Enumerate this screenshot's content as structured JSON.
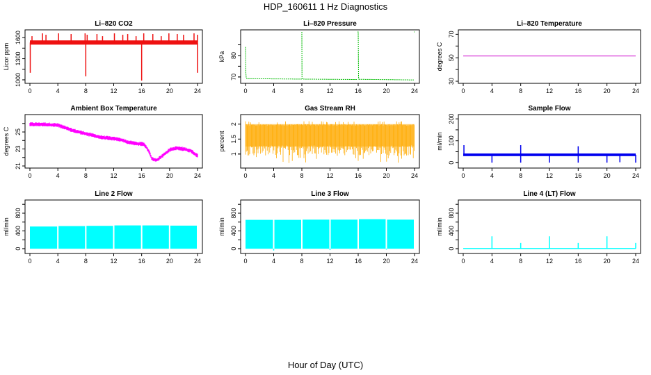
{
  "title": "HDP_160611  1 Hz Diagnostics",
  "xlabel": "Hour of Day (UTC)",
  "chart_data": [
    {
      "type": "line",
      "title": "Li–820 CO2",
      "ylabel": "Licor ppm",
      "color": "#ee1111",
      "xlim": [
        0,
        24
      ],
      "ylim": [
        980,
        1680
      ],
      "yticks": [
        1000,
        1300,
        1600
      ],
      "yticks_minor": [
        1150,
        1450
      ],
      "xticks": [
        0,
        4,
        8,
        12,
        16,
        20,
        24
      ],
      "baseline": 1530,
      "band": [
        1500,
        1560
      ],
      "spikes_up": [
        [
          0.3,
          1620
        ],
        [
          1.8,
          1660
        ],
        [
          2.3,
          1640
        ],
        [
          4.1,
          1660
        ],
        [
          5.9,
          1650
        ],
        [
          7.9,
          1660
        ],
        [
          8.2,
          1640
        ],
        [
          9.6,
          1650
        ],
        [
          10.4,
          1620
        ],
        [
          12.1,
          1660
        ],
        [
          13.3,
          1640
        ],
        [
          14.0,
          1650
        ],
        [
          15.2,
          1620
        ],
        [
          16.3,
          1660
        ],
        [
          17.6,
          1650
        ],
        [
          18.8,
          1620
        ],
        [
          19.9,
          1660
        ],
        [
          21.1,
          1650
        ],
        [
          22.0,
          1640
        ],
        [
          23.5,
          1660
        ],
        [
          24.0,
          1640
        ]
      ],
      "spikes_down": [
        [
          0.05,
          1100
        ],
        [
          8.0,
          1050
        ],
        [
          16.0,
          990
        ],
        [
          24.0,
          1100
        ]
      ]
    },
    {
      "type": "line",
      "title": "Li–820 Pressure",
      "ylabel": "kPa",
      "color": "#00bb00",
      "xlim": [
        0,
        24
      ],
      "ylim": [
        68,
        91
      ],
      "yticks": [
        70,
        80
      ],
      "yticks_minor": [
        75,
        85
      ],
      "xticks": [
        0,
        4,
        8,
        12,
        16,
        20,
        24
      ],
      "segments": [
        {
          "x": [
            0,
            0.05,
            0.1,
            0.2,
            8.0
          ],
          "y": [
            84,
            72,
            69.5,
            69.2,
            69.0
          ]
        },
        {
          "x": [
            8.0,
            8.02,
            8.1,
            15.9
          ],
          "y": [
            91,
            69.5,
            69.0,
            68.8
          ]
        },
        {
          "x": [
            15.9,
            16.0,
            16.05,
            16.1,
            23.9
          ],
          "y": [
            91,
            91,
            70,
            68.9,
            68.6
          ]
        },
        {
          "x": [
            23.9,
            24.0
          ],
          "y": [
            91,
            91
          ]
        }
      ]
    },
    {
      "type": "line",
      "title": "Li–820 Temperature",
      "ylabel": "degrees C",
      "color": "#cc00cc",
      "xlim": [
        0,
        24
      ],
      "ylim": [
        30,
        72
      ],
      "yticks": [
        30,
        50,
        70
      ],
      "yticks_minor": [
        40,
        60
      ],
      "xticks": [
        0,
        4,
        8,
        12,
        16,
        20,
        24
      ],
      "x": [
        0,
        24
      ],
      "y": [
        51.5,
        51.5
      ]
    },
    {
      "type": "line",
      "title": "Ambient Box Temperature",
      "ylabel": "degrees C",
      "color": "#ff00ff",
      "xlim": [
        0,
        24
      ],
      "ylim": [
        21,
        26.8
      ],
      "yticks": [
        21,
        23,
        25
      ],
      "yticks_minor": [
        22,
        24,
        26
      ],
      "xticks": [
        0,
        4,
        8,
        12,
        16,
        20,
        24
      ],
      "x": [
        0,
        2,
        4,
        5,
        6,
        8,
        10,
        12,
        13,
        14,
        15.5,
        16.3,
        17,
        17.5,
        18.2,
        19,
        20,
        21,
        22,
        23,
        24
      ],
      "y": [
        25.9,
        25.9,
        25.8,
        25.5,
        25.2,
        24.8,
        24.4,
        24.2,
        24.1,
        23.8,
        23.6,
        23.6,
        22.8,
        21.8,
        21.7,
        22.2,
        22.9,
        23.1,
        23.0,
        22.8,
        22.2
      ],
      "noise": 0.25
    },
    {
      "type": "line",
      "title": "Gas Stream RH",
      "ylabel": "percent",
      "color": "#ffaa00",
      "xlim": [
        0,
        24
      ],
      "ylim": [
        0.6,
        2.25
      ],
      "yticks": [
        1.0,
        1.5,
        2.0
      ],
      "yticks_minor": [],
      "xticks": [
        0,
        4,
        8,
        12,
        16,
        20,
        24
      ],
      "band": [
        0.95,
        2.0
      ],
      "noise_low": 0.7
    },
    {
      "type": "line",
      "title": "Sample Flow",
      "ylabel": "ml/min",
      "color": "#0000ee",
      "xlim": [
        0,
        24
      ],
      "ylim": [
        -15,
        210
      ],
      "yticks": [
        0,
        100,
        200
      ],
      "yticks_minor": [
        50,
        150
      ],
      "xticks": [
        0,
        4,
        8,
        12,
        16,
        20,
        24
      ],
      "band": [
        30,
        42
      ],
      "spikes_up": [
        [
          0.1,
          80
        ],
        [
          8.0,
          80
        ],
        [
          16.0,
          75
        ]
      ],
      "spikes_down": [
        [
          4.0,
          0
        ],
        [
          8.0,
          0
        ],
        [
          12.0,
          0
        ],
        [
          16.0,
          0
        ],
        [
          20.0,
          0
        ],
        [
          21.8,
          2
        ],
        [
          24.0,
          0
        ]
      ]
    },
    {
      "type": "line",
      "title": "Line 2 Flow",
      "ylabel": "ml/min",
      "color": "#00ffff",
      "xlim": [
        0,
        24
      ],
      "ylim": [
        -60,
        1050
      ],
      "yticks": [
        0,
        400,
        800
      ],
      "yticks_minor": [
        200,
        600,
        1000
      ],
      "xticks": [
        0,
        4,
        8,
        12,
        16,
        20,
        24
      ],
      "blocks": [
        [
          0,
          3.9,
          0,
          500
        ],
        [
          4.1,
          7.9,
          0,
          510
        ],
        [
          8.1,
          11.9,
          0,
          515
        ],
        [
          12.1,
          15.9,
          0,
          525
        ],
        [
          16.1,
          19.9,
          0,
          525
        ],
        [
          20.1,
          23.9,
          0,
          520
        ]
      ]
    },
    {
      "type": "line",
      "title": "Line 3 Flow",
      "ylabel": "ml/min",
      "color": "#00ffff",
      "xlim": [
        0,
        24
      ],
      "ylim": [
        -60,
        1050
      ],
      "yticks": [
        0,
        400,
        800
      ],
      "yticks_minor": [
        200,
        600,
        1000
      ],
      "xticks": [
        0,
        4,
        8,
        12,
        16,
        20,
        24
      ],
      "blocks": [
        [
          0,
          3.9,
          0,
          650
        ],
        [
          4.1,
          7.9,
          0,
          650
        ],
        [
          8.1,
          11.9,
          0,
          655
        ],
        [
          12.1,
          15.9,
          0,
          655
        ],
        [
          16.1,
          19.9,
          0,
          665
        ],
        [
          20.1,
          23.9,
          0,
          655
        ]
      ],
      "spikes_down": [
        [
          4.0,
          -40
        ],
        [
          12.0,
          -30
        ],
        [
          20.0,
          -20
        ]
      ]
    },
    {
      "type": "line",
      "title": "Line 4 (LT) Flow",
      "ylabel": "ml/min",
      "color": "#00ffff",
      "xlim": [
        0,
        24
      ],
      "ylim": [
        -60,
        1050
      ],
      "yticks": [
        0,
        400,
        800
      ],
      "yticks_minor": [
        200,
        600,
        1000
      ],
      "xticks": [
        0,
        4,
        8,
        12,
        16,
        20,
        24
      ],
      "baseline": 5,
      "spikes_up": [
        [
          4.0,
          280
        ],
        [
          8.0,
          130
        ],
        [
          12.0,
          280
        ],
        [
          16.0,
          130
        ],
        [
          20.0,
          280
        ],
        [
          24.0,
          130
        ]
      ]
    }
  ]
}
